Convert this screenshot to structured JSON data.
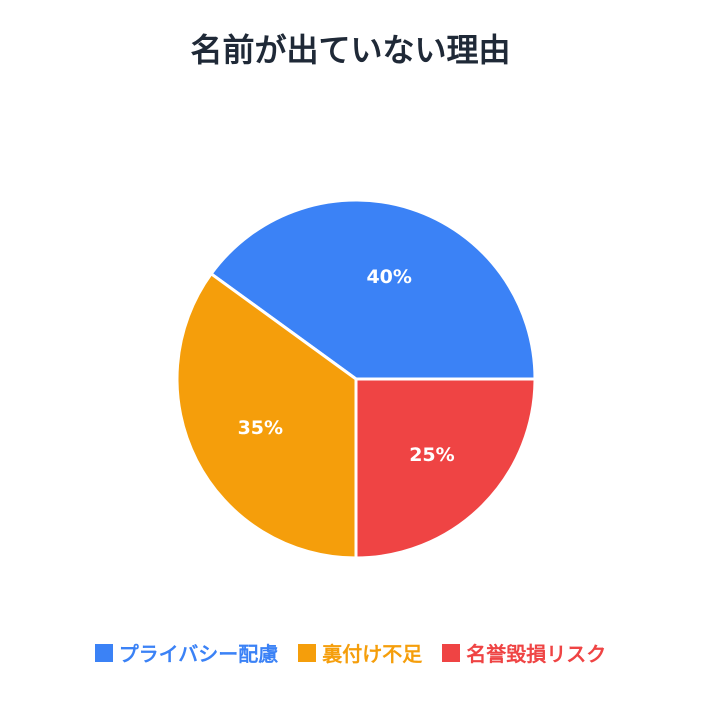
{
  "chart_data": {
    "type": "pie",
    "title": "名前が出ていない理由",
    "slices": [
      {
        "label": "プライバシー配慮",
        "value": 40,
        "display": "40%",
        "color": "#3b82f6"
      },
      {
        "label": "裏付け不足",
        "value": 35,
        "display": "35%",
        "color": "#f59e0b"
      },
      {
        "label": "名誉毀損リスク",
        "value": 25,
        "display": "25%",
        "color": "#ef4444"
      }
    ],
    "legend_position": "bottom"
  }
}
